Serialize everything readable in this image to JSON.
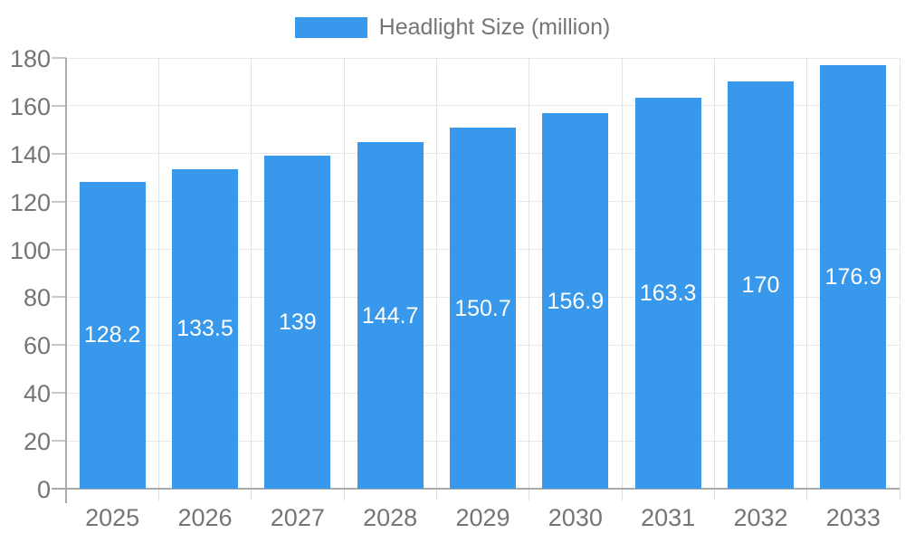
{
  "legend": {
    "label": "Headlight Size (million)"
  },
  "colors": {
    "bar": "#3899EC",
    "grid_horizontal": "#E9E9E9",
    "grid_vertical": "#E2E2E2",
    "axis": "#ABABAB",
    "tick_y": "#C9C9C9",
    "tick_x": "#DCDCDC",
    "text": "#757575",
    "value_label": "#FFFFFF",
    "background": "#FFFFFF"
  },
  "chart_data": {
    "type": "bar",
    "title": "",
    "categories": [
      "2025",
      "2026",
      "2027",
      "2028",
      "2029",
      "2030",
      "2031",
      "2032",
      "2033"
    ],
    "series": [
      {
        "name": "Headlight Size (million)",
        "values": [
          128.2,
          133.5,
          139,
          144.7,
          150.7,
          156.9,
          163.3,
          170,
          176.9
        ]
      }
    ],
    "value_labels": [
      "128.2",
      "133.5",
      "139",
      "144.7",
      "150.7",
      "156.9",
      "163.3",
      "170",
      "176.9"
    ],
    "xlabel": "",
    "ylabel": "",
    "ylim": [
      0,
      180
    ],
    "ytick_step": 20,
    "grid": true,
    "legend_position": "top-center"
  }
}
